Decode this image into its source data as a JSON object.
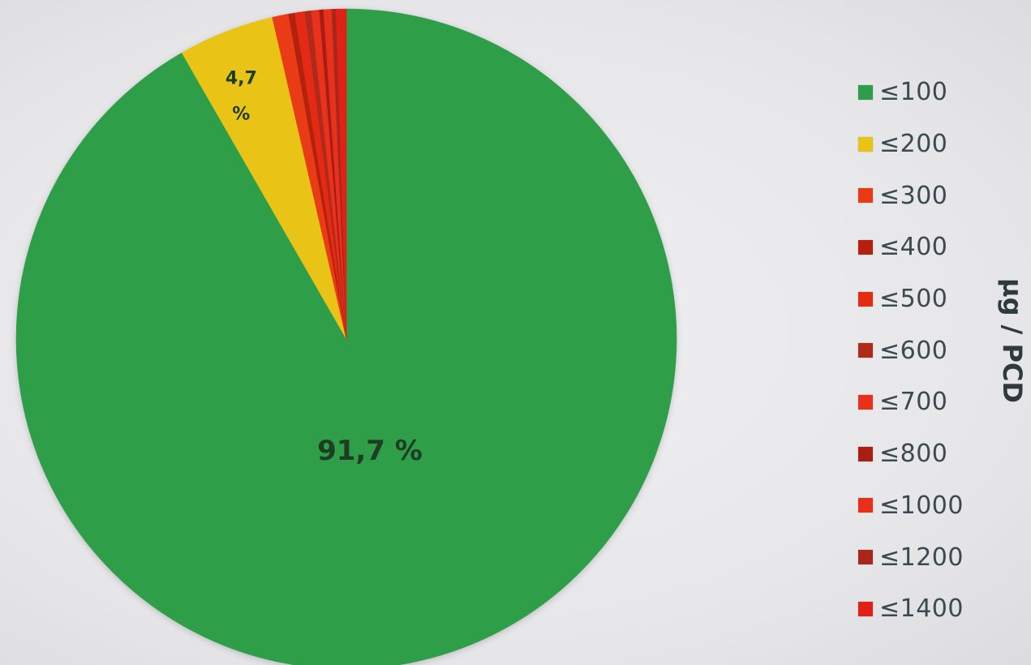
{
  "chart_data": {
    "type": "pie",
    "title": "",
    "legend_title": "µg / PCD",
    "legend_position": "right",
    "start_angle_deg": 0,
    "direction": "clockwise",
    "slices": [
      {
        "label": "≤100",
        "value": 91.7,
        "color": "#2f9e4a",
        "data_label": "91,7 %"
      },
      {
        "label": "≤200",
        "value": 4.7,
        "color": "#e9c414",
        "data_label": "4,7 %"
      },
      {
        "label": "≤300",
        "value": 0.8,
        "color": "#e83a14",
        "data_label": ""
      },
      {
        "label": "≤400",
        "value": 0.3,
        "color": "#b3200f",
        "data_label": ""
      },
      {
        "label": "≤500",
        "value": 0.5,
        "color": "#e42c12",
        "data_label": ""
      },
      {
        "label": "≤600",
        "value": 0.3,
        "color": "#b02a1c",
        "data_label": ""
      },
      {
        "label": "≤700",
        "value": 0.4,
        "color": "#e9301a",
        "data_label": ""
      },
      {
        "label": "≤800",
        "value": 0.2,
        "color": "#a81e12",
        "data_label": ""
      },
      {
        "label": "≤1000",
        "value": 0.4,
        "color": "#e6301a",
        "data_label": ""
      },
      {
        "label": "≤1200",
        "value": 0.2,
        "color": "#a8261c",
        "data_label": ""
      },
      {
        "label": "≤1400",
        "value": 0.5,
        "color": "#e02016",
        "data_label": ""
      }
    ]
  }
}
